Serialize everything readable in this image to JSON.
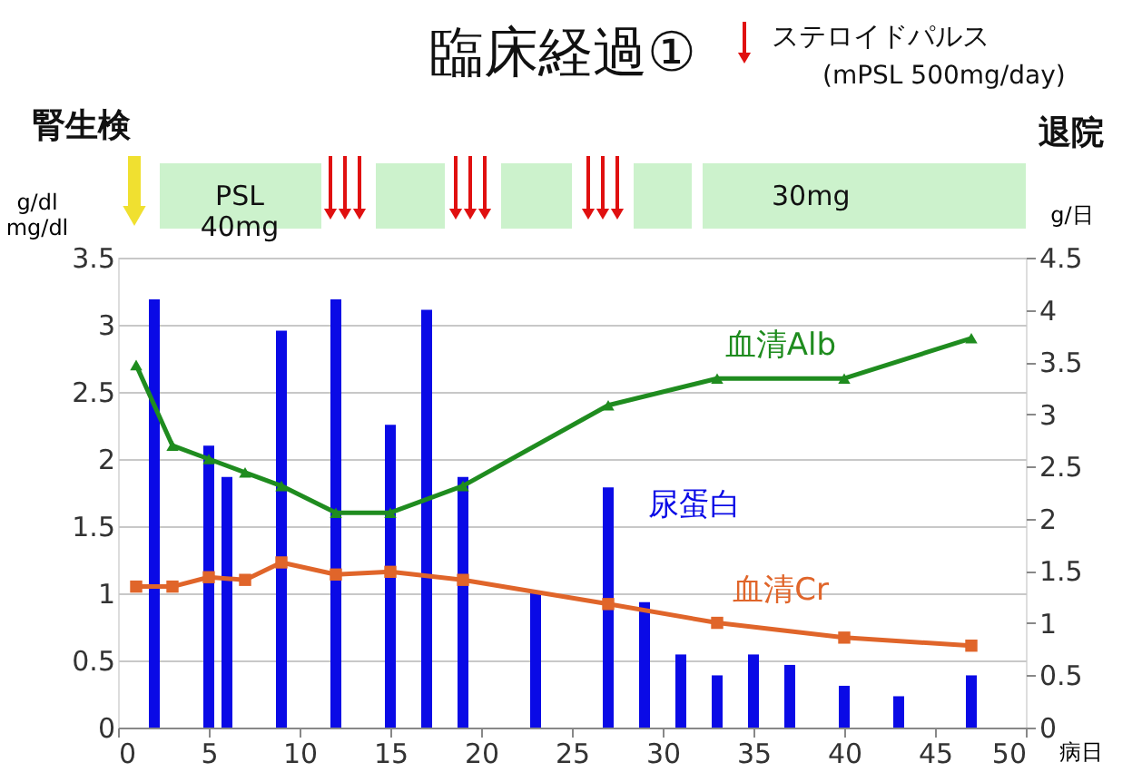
{
  "chart_data": {
    "type": "line",
    "title": "臨床経過①",
    "xlabel": "病日",
    "ylabel": "g/dl mg/dl",
    "y2label": "g/日",
    "xlim": [
      0,
      50
    ],
    "xticks": [
      0,
      5,
      10,
      15,
      20,
      25,
      30,
      35,
      40,
      45,
      50
    ],
    "ylim": [
      0,
      3.5
    ],
    "yticks": [
      0,
      0.5,
      1,
      1.5,
      2,
      2.5,
      3,
      3.5
    ],
    "y2lim": [
      0,
      4.5
    ],
    "y2ticks": [
      0,
      0.5,
      1,
      1.5,
      2,
      2.5,
      3,
      3.5,
      4,
      4.5
    ],
    "grid": "y",
    "series": [
      {
        "name": "尿蛋白",
        "type": "bar",
        "axis": "y2",
        "color": "#0a0ae6",
        "x": [
          2,
          5,
          6,
          9,
          12,
          15,
          17,
          19,
          23,
          27,
          29,
          31,
          33,
          35,
          37,
          40,
          43,
          47
        ],
        "values": [
          4.1,
          2.7,
          2.4,
          3.8,
          4.1,
          2.9,
          4.0,
          2.4,
          1.3,
          2.3,
          1.2,
          0.7,
          0.5,
          0.7,
          0.6,
          0.4,
          0.3,
          0.5
        ]
      },
      {
        "name": "血清Alb",
        "color": "#1f8c1f",
        "marker": "triangle",
        "x": [
          1,
          3,
          5,
          7,
          9,
          12,
          15,
          19,
          27,
          33,
          40,
          47
        ],
        "values": [
          2.7,
          2.1,
          2.0,
          1.9,
          1.8,
          1.6,
          1.6,
          1.8,
          2.4,
          2.6,
          2.6,
          2.9
        ]
      },
      {
        "name": "血清Cr",
        "color": "#e0652a",
        "marker": "square",
        "x": [
          1,
          3,
          5,
          7,
          9,
          12,
          15,
          19,
          27,
          33,
          40,
          47
        ],
        "values": [
          1.05,
          1.05,
          1.12,
          1.1,
          1.23,
          1.14,
          1.16,
          1.1,
          0.92,
          0.78,
          0.67,
          0.61
        ]
      }
    ],
    "annotations": [
      "ステロイドパルス",
      "(mPSL 500mg/day)",
      "退院",
      "腎生検",
      "PSL 40mg",
      "30mg"
    ]
  }
}
